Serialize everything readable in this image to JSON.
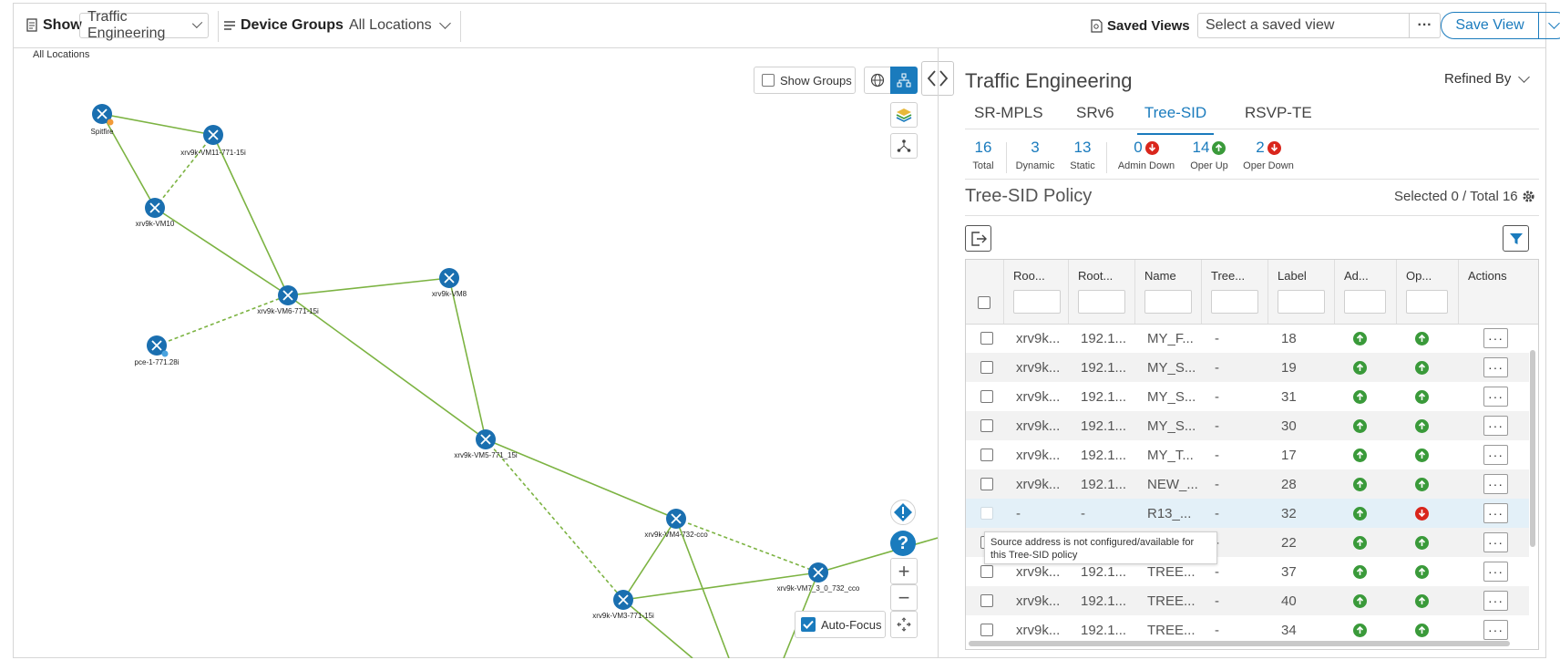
{
  "topbar": {
    "show_label": "Show",
    "show_value": "Traffic Engineering",
    "device_groups_label": "Device Groups",
    "device_groups_value": "All Locations",
    "saved_views_label": "Saved Views",
    "saved_view_placeholder": "Select a saved view",
    "more_label": "···",
    "save_view_label": "Save View"
  },
  "map": {
    "breadcrumb": "All Locations",
    "show_groups_label": "Show Groups",
    "auto_focus_label": "Auto-Focus",
    "auto_focus_checked": true,
    "nodes": [
      {
        "id": "spitfire",
        "label": "Spitfire",
        "badge": "orange"
      },
      {
        "id": "vm11",
        "label": "xrv9k-VM11-771-15i"
      },
      {
        "id": "vm10",
        "label": "xrv9k-VM10"
      },
      {
        "id": "vm6",
        "label": "xrv9k-VM6-771-15i"
      },
      {
        "id": "vm8",
        "label": "xrv9k-VM8"
      },
      {
        "id": "pce",
        "label": "pce-1-771.28i",
        "badge": "blue"
      },
      {
        "id": "vm5",
        "label": "xrv9k-VM5-771_15i"
      },
      {
        "id": "vm4",
        "label": "xrv9k-VM4-732-cco"
      },
      {
        "id": "vm7",
        "label": "xrv9k-VM7_3_0_732_cco"
      },
      {
        "id": "vm3",
        "label": "xrv9k-VM3-771-15i"
      }
    ],
    "link_color": "#7cb342",
    "node_color": "#1a6fb0"
  },
  "panel": {
    "title": "Traffic Engineering",
    "refined_by": "Refined By",
    "tabs": [
      {
        "label": "SR-MPLS",
        "active": false
      },
      {
        "label": "SRv6",
        "active": false
      },
      {
        "label": "Tree-SID",
        "active": true
      },
      {
        "label": "RSVP-TE",
        "active": false
      }
    ],
    "stats": [
      {
        "value": "16",
        "label": "Total"
      },
      {
        "value": "3",
        "label": "Dynamic"
      },
      {
        "value": "13",
        "label": "Static"
      },
      {
        "value": "0",
        "label": "Admin Down",
        "icon": "down"
      },
      {
        "value": "14",
        "label": "Oper Up",
        "icon": "up"
      },
      {
        "value": "2",
        "label": "Oper Down",
        "icon": "down"
      }
    ],
    "section_title": "Tree-SID Policy",
    "selected_total": "Selected 0 / Total 16"
  },
  "table": {
    "columns": [
      "Roo...",
      "Root...",
      "Name",
      "Tree...",
      "Label",
      "Ad...",
      "Op...",
      "Actions"
    ],
    "rows": [
      {
        "c1": "xrv9k...",
        "c2": "192.1...",
        "name": "MY_F...",
        "tree": "-",
        "label": "18",
        "admin": "up",
        "oper": "up"
      },
      {
        "c1": "xrv9k...",
        "c2": "192.1...",
        "name": "MY_S...",
        "tree": "-",
        "label": "19",
        "admin": "up",
        "oper": "up"
      },
      {
        "c1": "xrv9k...",
        "c2": "192.1...",
        "name": "MY_S...",
        "tree": "-",
        "label": "31",
        "admin": "up",
        "oper": "up"
      },
      {
        "c1": "xrv9k...",
        "c2": "192.1...",
        "name": "MY_S...",
        "tree": "-",
        "label": "30",
        "admin": "up",
        "oper": "up"
      },
      {
        "c1": "xrv9k...",
        "c2": "192.1...",
        "name": "MY_T...",
        "tree": "-",
        "label": "17",
        "admin": "up",
        "oper": "up"
      },
      {
        "c1": "xrv9k...",
        "c2": "192.1...",
        "name": "NEW_...",
        "tree": "-",
        "label": "28",
        "admin": "up",
        "oper": "up"
      },
      {
        "c1": "-",
        "c2": "-",
        "name": "R13_...",
        "tree": "-",
        "label": "32",
        "admin": "up",
        "oper": "down"
      },
      {
        "c1": "",
        "c2": "",
        "name": "",
        "tree": "-",
        "label": "22",
        "admin": "up",
        "oper": "up"
      },
      {
        "c1": "xrv9k...",
        "c2": "192.1...",
        "name": "TREE...",
        "tree": "-",
        "label": "37",
        "admin": "up",
        "oper": "up"
      },
      {
        "c1": "xrv9k...",
        "c2": "192.1...",
        "name": "TREE...",
        "tree": "-",
        "label": "40",
        "admin": "up",
        "oper": "up"
      },
      {
        "c1": "xrv9k...",
        "c2": "192.1...",
        "name": "TREE...",
        "tree": "-",
        "label": "34",
        "admin": "up",
        "oper": "up"
      }
    ],
    "tooltip": "Source address is not configured/available for this Tree-SID policy",
    "colors": {
      "up": "#3a9a3a",
      "down": "#d9261c",
      "accent": "#1a7bbd"
    }
  }
}
